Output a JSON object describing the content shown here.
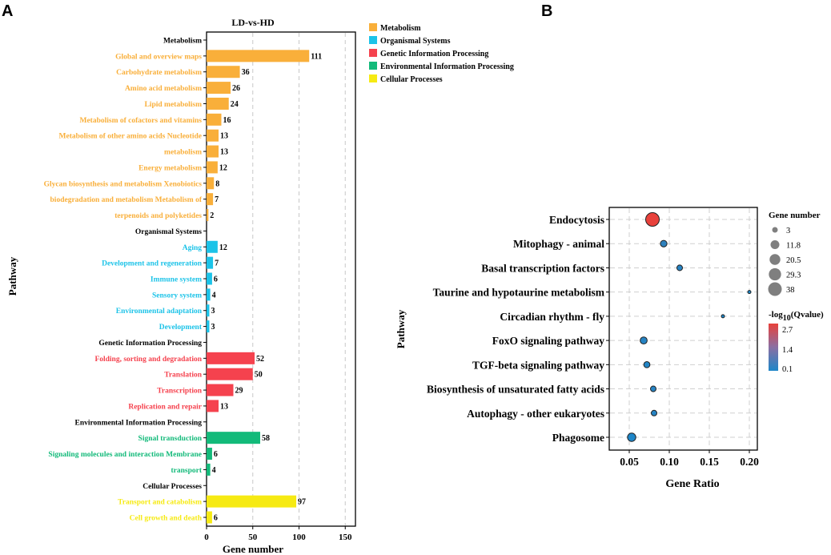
{
  "panel_a": {
    "panel_label": "A",
    "ylabel_title": "Pathway"
  },
  "panel_b": {
    "panel_label": "B"
  },
  "colors": {
    "Metabolism": "#F9AF3A",
    "Organismal Systems": "#1CC3E8",
    "Genetic Information Processing": "#F5424E",
    "Environmental Information Processing": "#13BA7A",
    "Cellular Processes": "#F6EA13",
    "header": "#000000",
    "bubble_low": "#1E86C8",
    "bubble_high": "#E8413B"
  },
  "chart_data": [
    {
      "type": "bar",
      "orientation": "horizontal",
      "title": "LD-vs-HD",
      "xlabel": "Gene number",
      "ylabel": "Pathway",
      "xlim": [
        0,
        160
      ],
      "xticks": [
        0,
        50,
        100,
        150
      ],
      "grid": "vertical-dashed",
      "legend": [
        "Metabolism",
        "Organismal Systems",
        "Genetic Information Processing",
        "Environmental Information Processing",
        "Cellular Processes"
      ],
      "legend_position": "right",
      "rows": [
        {
          "label": "Metabolism",
          "header": true
        },
        {
          "label": "Global and overview maps",
          "value": 111,
          "category": "Metabolism"
        },
        {
          "label": "Carbohydrate metabolism",
          "value": 36,
          "category": "Metabolism"
        },
        {
          "label": "Amino acid metabolism",
          "value": 26,
          "category": "Metabolism"
        },
        {
          "label": "Lipid metabolism",
          "value": 24,
          "category": "Metabolism"
        },
        {
          "label": "Metabolism of cofactors and vitamins",
          "value": 16,
          "category": "Metabolism"
        },
        {
          "label": "Metabolism of other amino acids Nucleotide",
          "value": 13,
          "category": "Metabolism"
        },
        {
          "label": "metabolism",
          "value": 13,
          "category": "Metabolism"
        },
        {
          "label": "Energy metabolism",
          "value": 12,
          "category": "Metabolism"
        },
        {
          "label": "Glycan biosynthesis and metabolism Xenobiotics",
          "value": 8,
          "category": "Metabolism"
        },
        {
          "label": "biodegradation and metabolism Metabolism of",
          "value": 7,
          "category": "Metabolism"
        },
        {
          "label": "terpenoids and polyketides",
          "value": 2,
          "category": "Metabolism"
        },
        {
          "label": "Organismal Systems",
          "header": true
        },
        {
          "label": "Aging",
          "value": 12,
          "category": "Organismal Systems"
        },
        {
          "label": "Development and regeneration",
          "value": 7,
          "category": "Organismal Systems"
        },
        {
          "label": "Immune system",
          "value": 6,
          "category": "Organismal Systems"
        },
        {
          "label": "Sensory system",
          "value": 4,
          "category": "Organismal Systems"
        },
        {
          "label": "Environmental adaptation",
          "value": 3,
          "category": "Organismal Systems"
        },
        {
          "label": "Development",
          "value": 3,
          "category": "Organismal Systems"
        },
        {
          "label": "Genetic Information Processing",
          "header": true
        },
        {
          "label": "Folding, sorting and degradation",
          "value": 52,
          "category": "Genetic Information Processing"
        },
        {
          "label": "Translation",
          "value": 50,
          "category": "Genetic Information Processing"
        },
        {
          "label": "Transcription",
          "value": 29,
          "category": "Genetic Information Processing"
        },
        {
          "label": "Replication and repair",
          "value": 13,
          "category": "Genetic Information Processing"
        },
        {
          "label": "Environmental Information Processing",
          "header": true
        },
        {
          "label": "Signal transduction",
          "value": 58,
          "category": "Environmental Information Processing"
        },
        {
          "label": "Signaling molecules and interaction Membrane",
          "value": 6,
          "category": "Environmental Information Processing"
        },
        {
          "label": "transport",
          "value": 4,
          "category": "Environmental Information Processing"
        },
        {
          "label": "Cellular Processes",
          "header": true
        },
        {
          "label": "Transport and catabolism",
          "value": 97,
          "category": "Cellular Processes"
        },
        {
          "label": "Cell growth and death",
          "value": 6,
          "category": "Cellular Processes"
        }
      ]
    },
    {
      "type": "scatter",
      "subtype": "bubble",
      "title": "",
      "xlabel": "Gene Ratio",
      "ylabel": "Pathway",
      "xlim": [
        0.025,
        0.21
      ],
      "xticks": [
        0.05,
        0.1,
        0.15,
        0.2
      ],
      "xtick_labels": [
        "0.05",
        "0.10",
        "0.15",
        "0.20"
      ],
      "grid": "dashed",
      "size_legend_title": "Gene number",
      "size_legend": [
        3,
        11.8,
        20.5,
        29.3,
        38
      ],
      "size_legend_labels": [
        "3",
        "11.8",
        "20.5",
        "29.3",
        "38"
      ],
      "color_legend_title_prefix": "-log",
      "color_legend_title_sub": "10",
      "color_legend_title_suffix": "(Qvalue)",
      "color_legend_ticks": [
        2.7,
        1.4,
        0.1
      ],
      "color_legend_tick_labels": [
        "2.7",
        "1.4",
        "0.1"
      ],
      "color_range": [
        0.1,
        2.7
      ],
      "points": [
        {
          "pathway": "Endocytosis",
          "gene_ratio": 0.079,
          "gene_number": 38,
          "neg_log10_q": 2.7
        },
        {
          "pathway": "Mitophagy - animal",
          "gene_ratio": 0.093,
          "gene_number": 5,
          "neg_log10_q": 0.3
        },
        {
          "pathway": "Basal transcription factors",
          "gene_ratio": 0.113,
          "gene_number": 3,
          "neg_log10_q": 0.2
        },
        {
          "pathway": "Taurine and hypotaurine metabolism",
          "gene_ratio": 0.2,
          "gene_number": 1,
          "neg_log10_q": 0.1
        },
        {
          "pathway": "Circadian rhythm - fly",
          "gene_ratio": 0.167,
          "gene_number": 1,
          "neg_log10_q": 0.1
        },
        {
          "pathway": "FoxO signaling pathway",
          "gene_ratio": 0.068,
          "gene_number": 6,
          "neg_log10_q": 0.2
        },
        {
          "pathway": "TGF-beta signaling pathway",
          "gene_ratio": 0.072,
          "gene_number": 4,
          "neg_log10_q": 0.15
        },
        {
          "pathway": "Biosynthesis of unsaturated fatty acids",
          "gene_ratio": 0.08,
          "gene_number": 3,
          "neg_log10_q": 0.2
        },
        {
          "pathway": "Autophagy - other eukaryotes",
          "gene_ratio": 0.081,
          "gene_number": 3,
          "neg_log10_q": 0.2
        },
        {
          "pathway": "Phagosome",
          "gene_ratio": 0.053,
          "gene_number": 10,
          "neg_log10_q": 0.1
        }
      ]
    }
  ]
}
